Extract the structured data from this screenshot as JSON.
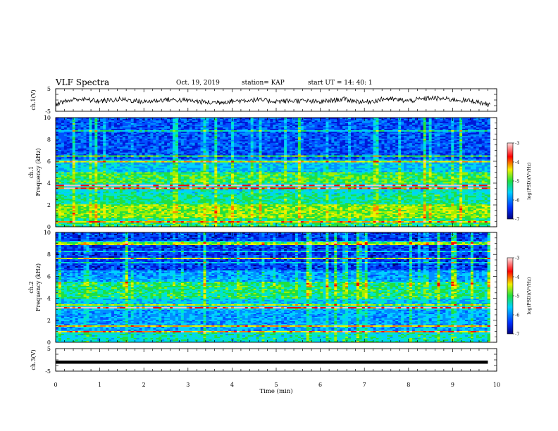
{
  "header": {
    "title": "VLF Spectra",
    "date": "Oct. 19, 2019",
    "station": "station= KAP",
    "start": "start  UT =   14: 40: 1"
  },
  "chart_data": [
    {
      "type": "line",
      "panel": "ch1-waveform",
      "ylabel": "ch.1(V)",
      "ylim": [
        -5,
        5
      ],
      "yticks": [
        "5",
        "-5"
      ],
      "xlim": [
        0,
        10
      ],
      "description_of_series": "noisy waveform fluctuating roughly between -3 and 2 V",
      "x": [
        0,
        0.5,
        1,
        1.5,
        2,
        2.5,
        3,
        3.5,
        4,
        4.5,
        5,
        5.5,
        6,
        6.5,
        7,
        7.5,
        8,
        8.5,
        9,
        9.5,
        9.8
      ],
      "y": [
        -1.5,
        0.5,
        -0.5,
        0.3,
        -0.8,
        0.2,
        -0.2,
        -1.2,
        -0.5,
        0.1,
        -0.6,
        -0.3,
        -0.9,
        0.4,
        -1.0,
        0.6,
        -0.4,
        0.9,
        0.2,
        -0.5,
        -2.0
      ]
    },
    {
      "type": "heatmap",
      "panel": "ch1-spectrogram",
      "ylabel": "ch.1\nFrequency (kHz)",
      "ylim": [
        0,
        10
      ],
      "yticks": [
        "0",
        "2",
        "4",
        "6",
        "8",
        "10"
      ],
      "xlim": [
        0,
        10
      ],
      "colorbar": {
        "label": "log(PSD)(V²/Hz)",
        "ticks": [
          "-3",
          "-4",
          "-5",
          "-6",
          "-7"
        ],
        "range": [
          -7,
          -3
        ]
      }
    },
    {
      "type": "heatmap",
      "panel": "ch2-spectrogram",
      "ylabel": "ch.2\nFrequency (kHz)",
      "ylim": [
        0,
        10
      ],
      "yticks": [
        "0",
        "2",
        "4",
        "6",
        "8",
        "10"
      ],
      "xlim": [
        0,
        10
      ],
      "colorbar": {
        "label": "log(PSD)(V²/Hz)",
        "ticks": [
          "-3",
          "-4",
          "-5",
          "-6",
          "-7"
        ],
        "range": [
          -7,
          -3
        ]
      }
    },
    {
      "type": "line",
      "panel": "ch3-waveform",
      "ylabel": "ch.3(V)",
      "ylim": [
        -5,
        5
      ],
      "yticks": [
        "5",
        "-5"
      ],
      "xlim": [
        0,
        10
      ],
      "x": [
        0,
        9.8
      ],
      "y": [
        -1,
        -1
      ]
    }
  ],
  "xaxis": {
    "label": "Time (min)",
    "ticks": [
      "0",
      "1",
      "2",
      "3",
      "4",
      "5",
      "6",
      "7",
      "8",
      "9",
      "10"
    ]
  },
  "colors": {
    "low": "#00007f",
    "mid_blue": "#1f5fff",
    "cyan": "#00e0e0",
    "green": "#20e040",
    "yellow": "#f0f000",
    "red": "#ff0000",
    "high": "#ffd0d0"
  }
}
